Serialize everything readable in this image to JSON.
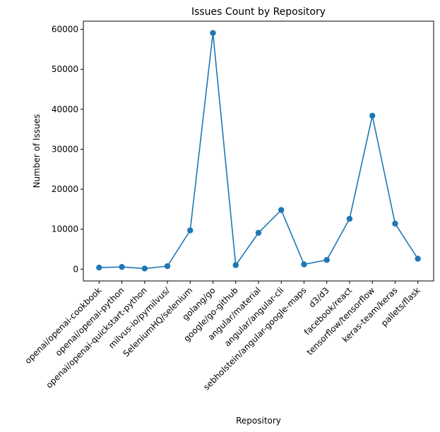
{
  "chart_data": {
    "type": "line",
    "title": "Issues Count by Repository",
    "xlabel": "Repository",
    "ylabel": "Number of Issues",
    "categories": [
      "openai/openai-cookbook",
      "openai/openai-python",
      "openai/openai-quickstart-python",
      "milvus-io/pymilvus/",
      "SeleniumHQ/selenium",
      "golang/go",
      "google/go-github",
      "angular/material",
      "angular/angular-cli",
      "sebholstein/angular-google-maps",
      "d3/d3",
      "facebook/react",
      "tensorflow/tensorflow",
      "keras-team/keras",
      "pallets/flask"
    ],
    "values": [
      400,
      550,
      150,
      750,
      9700,
      59100,
      1000,
      9100,
      14800,
      1200,
      2300,
      12600,
      38400,
      11400,
      2600
    ],
    "ylim": [
      -2950,
      62050
    ],
    "yticks": [
      0,
      10000,
      20000,
      30000,
      40000,
      50000,
      60000
    ],
    "ytick_labels": [
      "0",
      "10000",
      "20000",
      "30000",
      "40000",
      "50000",
      "60000"
    ],
    "grid": false,
    "legend": "none",
    "color": "#1f77b4"
  }
}
